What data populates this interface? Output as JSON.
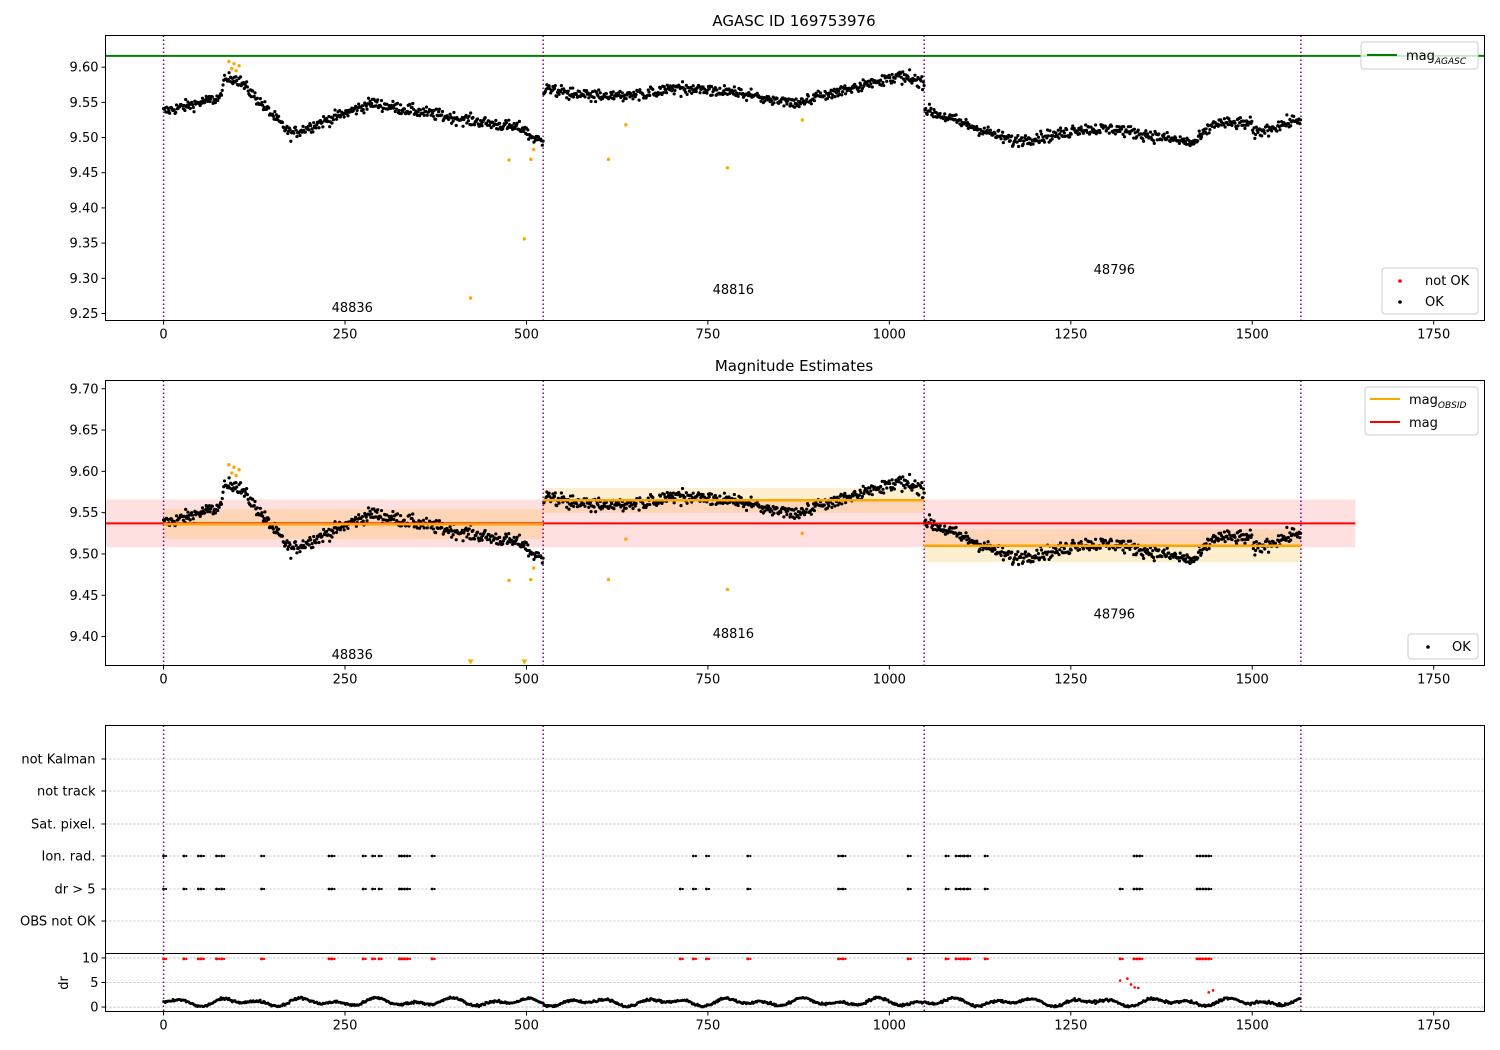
{
  "chart_data": [
    {
      "type": "scatter",
      "title": "AGASC ID 169753976",
      "xlim": [
        -80,
        1820
      ],
      "ylim": [
        9.24,
        9.645
      ],
      "xticks": [
        0,
        250,
        500,
        750,
        1000,
        1250,
        1500,
        1750
      ],
      "yticks": [
        9.25,
        9.3,
        9.35,
        9.4,
        9.45,
        9.5,
        9.55,
        9.6
      ],
      "obsid_boundaries": [
        0,
        523,
        1048,
        1567
      ],
      "obsid_labels": [
        {
          "text": "48836",
          "x": 260,
          "y": 9.258
        },
        {
          "text": "48816",
          "x": 785,
          "y": 9.283
        },
        {
          "text": "48796",
          "x": 1310,
          "y": 9.312
        }
      ],
      "mag_agasc": 9.616,
      "series": [
        {
          "name": "not OK",
          "color": "#ff0000",
          "x": [],
          "y": []
        },
        {
          "name": "OK",
          "color": "#000000",
          "x": [],
          "y": []
        }
      ],
      "orange_points": {
        "color": "#ffa500",
        "x": [
          90,
          94,
          97,
          100,
          104,
          423,
          476,
          497,
          506,
          510,
          613,
          637,
          777,
          880
        ],
        "y": [
          9.608,
          9.598,
          9.605,
          9.595,
          9.602,
          9.272,
          9.468,
          9.356,
          9.469,
          9.483,
          9.469,
          9.518,
          9.457,
          9.525
        ]
      },
      "legend_top": [
        {
          "label": "mag",
          "sub": "AGASC",
          "color": "#008000"
        }
      ],
      "legend_bottom": [
        {
          "label": "not OK",
          "color": "#ff0000"
        },
        {
          "label": "OK",
          "color": "#000000"
        }
      ]
    },
    {
      "type": "scatter",
      "title": "Magnitude Estimates",
      "xlim": [
        -80,
        1820
      ],
      "ylim": [
        9.365,
        9.71
      ],
      "xticks": [
        0,
        250,
        500,
        750,
        1000,
        1250,
        1500,
        1750
      ],
      "yticks": [
        9.4,
        9.45,
        9.5,
        9.55,
        9.6,
        9.65,
        9.7
      ],
      "obsid_boundaries": [
        0,
        523,
        1048,
        1567
      ],
      "obsid_labels": [
        {
          "text": "48836",
          "x": 260,
          "y": 9.378
        },
        {
          "text": "48816",
          "x": 785,
          "y": 9.403
        },
        {
          "text": "48796",
          "x": 1310,
          "y": 9.427
        }
      ],
      "mag": 9.537,
      "mag_band": [
        9.508,
        9.566
      ],
      "mag_band_x": [
        -80,
        1642
      ],
      "mag_obsid": [
        {
          "x0": 0,
          "x1": 523,
          "mag": 9.536,
          "band": [
            9.518,
            9.554
          ]
        },
        {
          "x0": 523,
          "x1": 1048,
          "mag": 9.565,
          "band": [
            9.55,
            9.58
          ]
        },
        {
          "x0": 1048,
          "x1": 1567,
          "mag": 9.51,
          "band": [
            9.49,
            9.53
          ]
        }
      ],
      "orange_points": {
        "color": "#ffa500",
        "x": [
          90,
          94,
          97,
          100,
          104,
          476,
          506,
          510,
          613,
          637,
          777,
          880
        ],
        "y": [
          9.608,
          9.598,
          9.605,
          9.595,
          9.602,
          9.468,
          9.469,
          9.483,
          9.469,
          9.518,
          9.457,
          9.525
        ]
      },
      "offscale_markers": {
        "color": "#ffa500",
        "x": [
          423,
          497
        ]
      },
      "legend_top": [
        {
          "label": "mag",
          "sub": "OBSID",
          "color": "#ffa500"
        },
        {
          "label": "mag",
          "sub": "",
          "color": "#ff0000"
        }
      ],
      "legend_bottom": [
        {
          "label": "OK",
          "color": "#000000"
        }
      ]
    },
    {
      "type": "scatter",
      "title": "",
      "xlim": [
        -80,
        1820
      ],
      "xticks": [
        0,
        250,
        500,
        750,
        1000,
        1250,
        1500,
        1750
      ],
      "obsid_boundaries": [
        0,
        523,
        1048,
        1567
      ],
      "flag_rows": [
        "not Kalman",
        "not track",
        "Sat. pixel.",
        "Ion. rad.",
        "dr > 5",
        "OBS not OK"
      ],
      "flag_events": {
        "Ion. rad.": [
          0,
          28,
          48,
          52,
          73,
          80,
          135,
          228,
          232,
          275,
          288,
          297,
          325,
          328,
          332,
          336,
          370,
          730,
          748,
          805,
          930,
          936,
          1026,
          1078,
          1092,
          1098,
          1103,
          1108,
          1132,
          1337,
          1341,
          1345,
          1424,
          1428,
          1432,
          1436,
          1440
        ],
        "dr > 5": [
          0,
          28,
          48,
          52,
          73,
          80,
          135,
          228,
          232,
          275,
          288,
          297,
          325,
          328,
          332,
          336,
          370,
          712,
          730,
          748,
          805,
          930,
          936,
          1026,
          1078,
          1092,
          1098,
          1103,
          1108,
          1132,
          1318,
          1337,
          1341,
          1345,
          1424,
          1428,
          1432,
          1436,
          1440
        ]
      },
      "dr_ylabel": "dr",
      "dr_yticks": [
        0,
        5,
        10
      ],
      "dr_ylim": [
        -0.5,
        10.5
      ]
    }
  ]
}
